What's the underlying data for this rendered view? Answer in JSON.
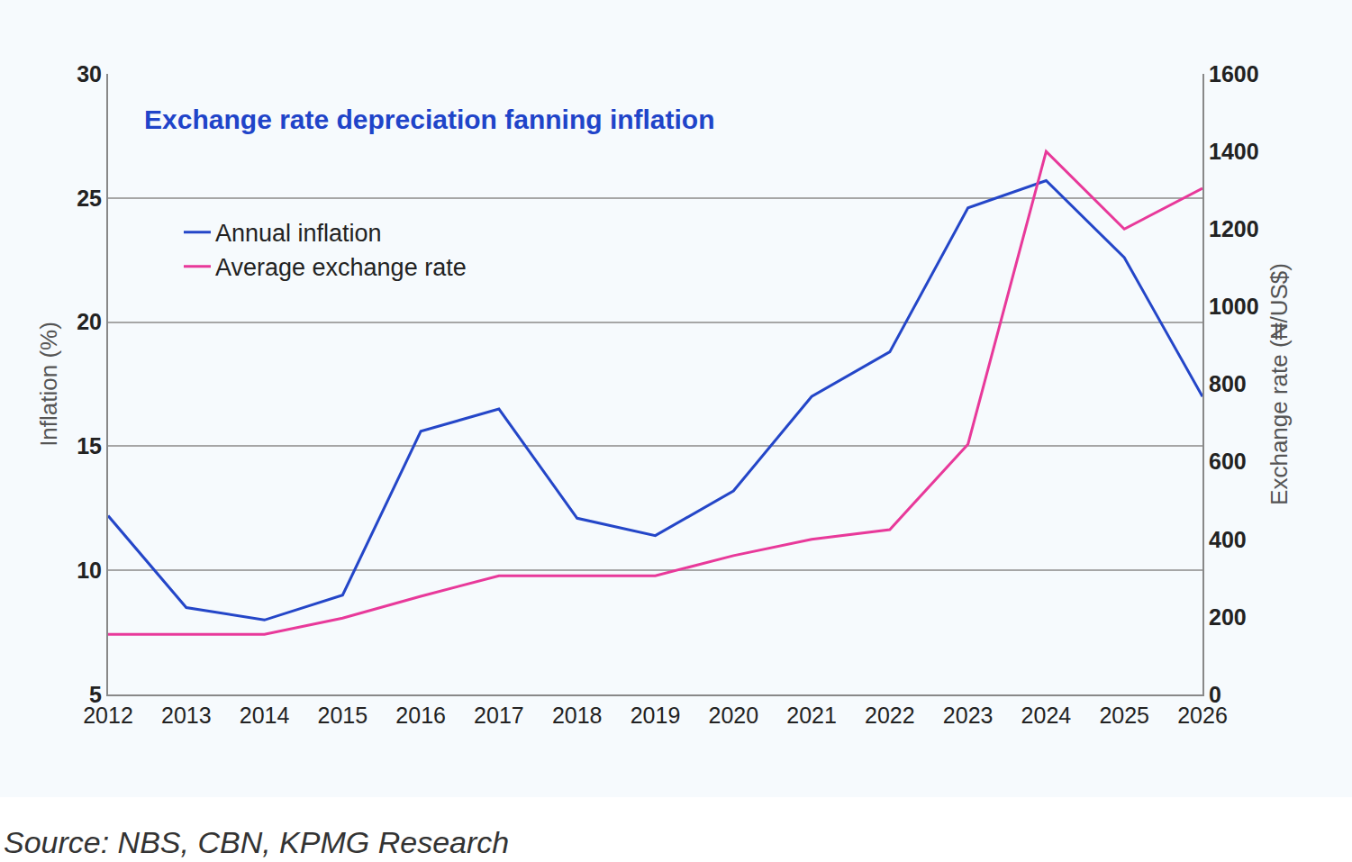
{
  "chart_data": {
    "type": "line",
    "title": "Exchange rate depreciation fanning inflation",
    "source": "Source: NBS, CBN, KPMG Research",
    "y_label": "Inflation (%)",
    "y2_label": "Exchange rate (₦/US$)",
    "categories": [
      "2012",
      "2013",
      "2014",
      "2015",
      "2016",
      "2017",
      "2018",
      "2019",
      "2020",
      "2021",
      "2022",
      "2023",
      "2024",
      "2025",
      "2026"
    ],
    "series": [
      {
        "name": "Annual inflation",
        "color": "#2446c8",
        "axis": "y",
        "values": [
          12.2,
          8.5,
          8.0,
          9.0,
          15.6,
          16.5,
          12.1,
          11.4,
          13.2,
          17.0,
          18.8,
          24.6,
          25.7,
          22.6,
          17.0
        ]
      },
      {
        "name": "Average exchange rate",
        "color": "#e8399a",
        "axis": "y2",
        "values": [
          155,
          155,
          155,
          197,
          253,
          306,
          306,
          306,
          358,
          400,
          425,
          645,
          1400,
          1200,
          1305
        ]
      }
    ],
    "ylim": [
      5,
      30
    ],
    "yticks": [
      5,
      10,
      15,
      20,
      25,
      30
    ],
    "y2lim": [
      0,
      1600
    ],
    "y2ticks": [
      0,
      200,
      400,
      600,
      800,
      1000,
      1200,
      1400,
      1600
    ],
    "grid": true,
    "legend": "upper left"
  }
}
